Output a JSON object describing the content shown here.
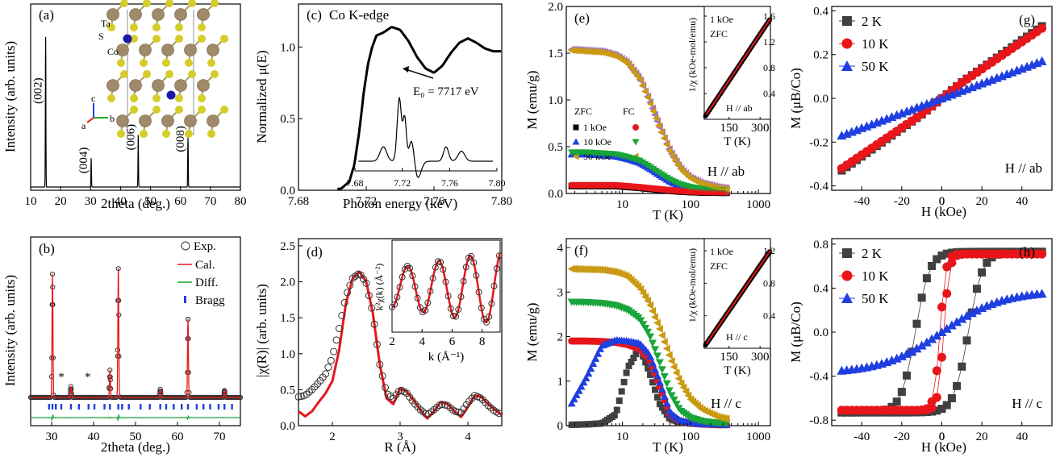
{
  "colors": {
    "black": "#000000",
    "red": "#e8161b",
    "green": "#19a539",
    "blue": "#1f3fe0",
    "gold": "#c99a12",
    "violet": "#a070c8",
    "grey": "#404040",
    "structure_ta": "#a08a6a",
    "structure_s": "#d6cc2a",
    "structure_co": "#1a1aa8"
  },
  "chart_data": [
    {
      "id": "a",
      "label": "(a)",
      "type": "line",
      "xlabel": "2theta (deg.)",
      "ylabel": "Intensity (arb. units)",
      "xlim": [
        10,
        80
      ],
      "xticks": [
        10,
        20,
        30,
        40,
        50,
        60,
        70,
        80
      ],
      "peaks": [
        {
          "x": 15.0,
          "height": 0.84,
          "label": "(002)"
        },
        {
          "x": 30.2,
          "height": 0.16,
          "label": "(004)"
        },
        {
          "x": 45.9,
          "height": 0.29,
          "label": "(006)"
        },
        {
          "x": 62.5,
          "height": 0.28,
          "label": "(008)"
        }
      ],
      "inset": {
        "type": "crystal-structure",
        "labels": [
          "Ta",
          "S",
          "Co"
        ],
        "axes": [
          "c",
          "a",
          "b"
        ]
      }
    },
    {
      "id": "b",
      "label": "(b)",
      "type": "line",
      "xlabel": "2theta (deg.)",
      "ylabel": "Intensity (arb. units)",
      "xlim": [
        25,
        75
      ],
      "xticks": [
        30,
        40,
        50,
        60,
        70
      ],
      "legend": [
        "Exp.",
        "Cal.",
        "Diff.",
        "Bragg"
      ],
      "peaks": [
        {
          "x": 30.2,
          "h": 0.9
        },
        {
          "x": 34.6,
          "h": 0.08
        },
        {
          "x": 43.9,
          "h": 0.2
        },
        {
          "x": 45.9,
          "h": 0.94
        },
        {
          "x": 55.9,
          "h": 0.06
        },
        {
          "x": 62.5,
          "h": 0.57
        },
        {
          "x": 71.2,
          "h": 0.05
        }
      ],
      "stars": [
        {
          "x": 32.3,
          "label": "*"
        },
        {
          "x": 38.6,
          "label": "*"
        }
      ],
      "bragg": [
        29.4,
        30.2,
        31.0,
        32.3,
        34.6,
        36.5,
        38.8,
        40.2,
        42.6,
        43.9,
        45.9,
        46.8,
        48.4,
        51.2,
        53.4,
        55.9,
        57.3,
        59.1,
        61.0,
        62.5,
        64.6,
        66.2,
        67.8,
        69.8,
        71.2,
        73.0
      ]
    },
    {
      "id": "c",
      "label": "(c)",
      "type": "line",
      "title": "Co K-edge",
      "xlabel": "Photon energy (keV)",
      "ylabel": "Normalized μ(E)",
      "xlim": [
        7.68,
        7.8
      ],
      "ylim": [
        0.0,
        1.3
      ],
      "xticks": [
        7.68,
        7.72,
        7.76,
        7.8
      ],
      "xtick_labels": [
        "7.68",
        "7.72",
        "7.76",
        "7.80"
      ],
      "yticks": [
        0.0,
        0.5,
        1.0
      ],
      "ytick_labels": [
        "0.0",
        "0.5",
        "1.0"
      ],
      "x": [
        7.705,
        7.71,
        7.713,
        7.716,
        7.7185,
        7.721,
        7.7235,
        7.726,
        7.73,
        7.735,
        7.74,
        7.745,
        7.75,
        7.755,
        7.76,
        7.765,
        7.77,
        7.775,
        7.78,
        7.785,
        7.79,
        7.795,
        7.8
      ],
      "y": [
        0.01,
        0.06,
        0.18,
        0.42,
        0.68,
        0.88,
        1.0,
        1.08,
        1.1,
        1.14,
        1.12,
        1.04,
        0.93,
        0.85,
        0.82,
        0.87,
        0.96,
        1.03,
        1.06,
        1.03,
        0.99,
        0.97,
        0.97
      ],
      "annotation": "E₀ = 7717 eV",
      "inset": {
        "xticks": [
          7.68,
          7.72,
          7.76,
          7.8
        ],
        "xtick_labels": [
          "7.68",
          "7.72",
          "7.76",
          "7.80"
        ]
      }
    },
    {
      "id": "d",
      "label": "(d)",
      "type": "line",
      "xlabel": "R (Å)",
      "ylabel": "|χ(R)| (arb. units)",
      "xlim": [
        1.5,
        4.5
      ],
      "ylim": [
        0.0,
        2.6
      ],
      "xticks": [
        2,
        3,
        4
      ],
      "yticks": [
        0.0,
        0.5,
        1.0,
        1.5,
        2.0,
        2.5
      ],
      "ytick_labels": [
        "0.0",
        "0.5",
        "1.0",
        "1.5",
        "2.0",
        "2.5"
      ],
      "x": [
        1.5,
        1.6,
        1.7,
        1.8,
        1.9,
        2.0,
        2.1,
        2.2,
        2.3,
        2.4,
        2.5,
        2.6,
        2.7,
        2.8,
        2.9,
        3.0,
        3.1,
        3.2,
        3.3,
        3.4,
        3.5,
        3.6,
        3.7,
        3.8,
        3.9,
        4.0,
        4.1,
        4.2,
        4.3,
        4.4,
        4.5
      ],
      "exp": [
        0.4,
        0.42,
        0.5,
        0.6,
        0.72,
        0.95,
        1.35,
        1.8,
        2.05,
        2.12,
        1.98,
        1.55,
        0.85,
        0.45,
        0.38,
        0.5,
        0.45,
        0.32,
        0.22,
        0.15,
        0.22,
        0.3,
        0.28,
        0.2,
        0.18,
        0.32,
        0.42,
        0.38,
        0.28,
        0.2,
        0.15
      ],
      "fit": [
        0.2,
        0.13,
        0.2,
        0.33,
        0.45,
        0.62,
        1.05,
        1.7,
        2.05,
        2.14,
        2.0,
        1.55,
        0.85,
        0.38,
        0.3,
        0.52,
        0.47,
        0.35,
        0.22,
        0.1,
        0.2,
        0.33,
        0.3,
        0.2,
        0.12,
        0.26,
        0.42,
        0.4,
        0.3,
        0.22,
        0.15
      ],
      "inset": {
        "xlabel": "k (Å⁻¹)",
        "ylabel": "k²χ(k) (Å⁻²)",
        "xticks": [
          2,
          4,
          6,
          8
        ]
      }
    },
    {
      "id": "e",
      "label": "(e)",
      "type": "line",
      "xlabel": "T (K)",
      "ylabel": "M (emu/g)",
      "xscale": "log",
      "xlim": [
        1.5,
        1500
      ],
      "ylim": [
        0.0,
        2.0
      ],
      "xticks": [
        10,
        100,
        1000
      ],
      "xtick_labels": [
        "10",
        "100",
        "1000"
      ],
      "yticks": [
        0.0,
        0.5,
        1.0,
        1.5,
        2.0
      ],
      "ytick_labels": [
        "0.0",
        "0.5",
        "1.0",
        "1.5",
        "2.0"
      ],
      "legend_header": [
        "ZFC",
        "FC"
      ],
      "legend_fields": [
        "1 kOe",
        "10 kOe",
        "50 kOe"
      ],
      "field_label": "H // ab",
      "T": [
        1.8,
        3,
        5,
        8,
        12,
        18,
        25,
        35,
        50,
        70,
        100,
        150,
        250,
        350
      ],
      "series": [
        {
          "name": "1 kOe",
          "values": [
            0.08,
            0.08,
            0.08,
            0.08,
            0.07,
            0.06,
            0.05,
            0.04,
            0.03,
            0.02,
            0.015,
            0.01,
            0.008,
            0.007
          ]
        },
        {
          "name": "10 kOe",
          "values": [
            0.42,
            0.42,
            0.41,
            0.4,
            0.37,
            0.33,
            0.27,
            0.2,
            0.13,
            0.08,
            0.05,
            0.03,
            0.02,
            0.015
          ]
        },
        {
          "name": "50 kOe",
          "values": [
            1.54,
            1.53,
            1.52,
            1.48,
            1.4,
            1.23,
            1.0,
            0.72,
            0.46,
            0.28,
            0.17,
            0.11,
            0.07,
            0.055
          ]
        }
      ],
      "inset": {
        "ylabel": "1/χ (kOe-mol/emu)",
        "xlabel": "T (K)",
        "xticks": [
          150,
          300
        ],
        "yticks": [
          0.4,
          0.8,
          1.2,
          1.6
        ],
        "ytick_labels": [
          "0.4",
          "0.8",
          "1.2",
          "1.6"
        ],
        "field": "1 kOe",
        "mode": "ZFC",
        "orientation": "H // ab"
      }
    },
    {
      "id": "f",
      "label": "(f)",
      "type": "line",
      "xlabel": "T (K)",
      "ylabel": "M (emu/g)",
      "xscale": "log",
      "xlim": [
        1.5,
        1500
      ],
      "ylim": [
        0,
        4.2
      ],
      "xticks": [
        10,
        100,
        1000
      ],
      "xtick_labels": [
        "10",
        "100",
        "1000"
      ],
      "yticks": [
        0,
        1,
        2,
        3,
        4
      ],
      "field_label": "H // c",
      "T": [
        1.8,
        3,
        5,
        8,
        12,
        18,
        25,
        35,
        50,
        70,
        100,
        150,
        250,
        350
      ],
      "series": [
        {
          "name": "1 kOe ZFC",
          "values": [
            0.02,
            0.03,
            0.05,
            0.25,
            1.3,
            1.75,
            1.2,
            0.5,
            0.15,
            0.08,
            0.05,
            0.03,
            0.02,
            0.02
          ]
        },
        {
          "name": "1 kOe FC",
          "values": [
            1.9,
            1.9,
            1.89,
            1.87,
            1.82,
            1.72,
            1.5,
            0.9,
            0.25,
            0.1,
            0.06,
            0.04,
            0.02,
            0.02
          ]
        },
        {
          "name": "10 kOe ZFC",
          "values": [
            0.5,
            1.1,
            1.8,
            1.92,
            1.9,
            1.85,
            1.6,
            1.0,
            0.3,
            0.12,
            0.07,
            0.04,
            0.03,
            0.02
          ]
        },
        {
          "name": "10 kOe FC",
          "values": [
            2.78,
            2.77,
            2.75,
            2.7,
            2.6,
            2.4,
            2.05,
            1.45,
            0.75,
            0.35,
            0.18,
            0.1,
            0.06,
            0.05
          ]
        },
        {
          "name": "50 kOe",
          "values": [
            3.52,
            3.51,
            3.5,
            3.45,
            3.35,
            3.1,
            2.75,
            2.2,
            1.55,
            1.0,
            0.6,
            0.36,
            0.2,
            0.15
          ]
        }
      ],
      "inset": {
        "ylabel": "1/χ (kOe-mol/emu)",
        "xlabel": "T (K)",
        "xticks": [
          150,
          300
        ],
        "yticks": [
          0.4,
          0.8,
          1.2
        ],
        "ytick_labels": [
          "0.4",
          "0.8",
          "1.2"
        ],
        "field": "1 kOe",
        "mode": "ZFC",
        "orientation": "H // c"
      }
    },
    {
      "id": "g",
      "label": "(g)",
      "type": "scatter",
      "xlabel": "H (kOe)",
      "ylabel": "M (μB/Co)",
      "xlim": [
        -55,
        55
      ],
      "ylim": [
        -0.42,
        0.42
      ],
      "xticks": [
        -40,
        -20,
        0,
        20,
        40
      ],
      "yticks": [
        -0.4,
        -0.2,
        0.0,
        0.2,
        0.4
      ],
      "ytick_labels": [
        "-0.4",
        "-0.2",
        "0.0",
        "0.2",
        "0.4"
      ],
      "legend": [
        "2 K",
        "10 K",
        "50 K"
      ],
      "field_label": "H // ab",
      "series": [
        {
          "name": "2 K",
          "slope": 0.0064,
          "coercive": 0.0
        },
        {
          "name": "10 K",
          "slope": 0.0062,
          "coercive": 0.0
        },
        {
          "name": "50 K",
          "slope": 0.0034,
          "coercive": 0.0
        }
      ]
    },
    {
      "id": "h",
      "label": "(h)",
      "type": "scatter",
      "xlabel": "H (kOe)",
      "ylabel": "M (μB/Co)",
      "xlim": [
        -55,
        55
      ],
      "ylim": [
        -0.85,
        0.85
      ],
      "xticks": [
        -40,
        -20,
        0,
        20,
        40
      ],
      "yticks": [
        -0.8,
        -0.4,
        0.0,
        0.4,
        0.8
      ],
      "ytick_labels": [
        "-0.8",
        "-0.4",
        "0.0",
        "0.4",
        "0.8"
      ],
      "legend": [
        "2 K",
        "10 K",
        "50 K"
      ],
      "field_label": "H // c",
      "series": [
        {
          "name": "2 K",
          "Ms": 0.73,
          "Hc": 15,
          "width": 4
        },
        {
          "name": "10 K",
          "Ms": 0.71,
          "Hc": 1.0,
          "width": 1.5
        },
        {
          "name": "50 K",
          "Ms": 0.35,
          "Hc": 0,
          "width": 0
        }
      ]
    }
  ]
}
